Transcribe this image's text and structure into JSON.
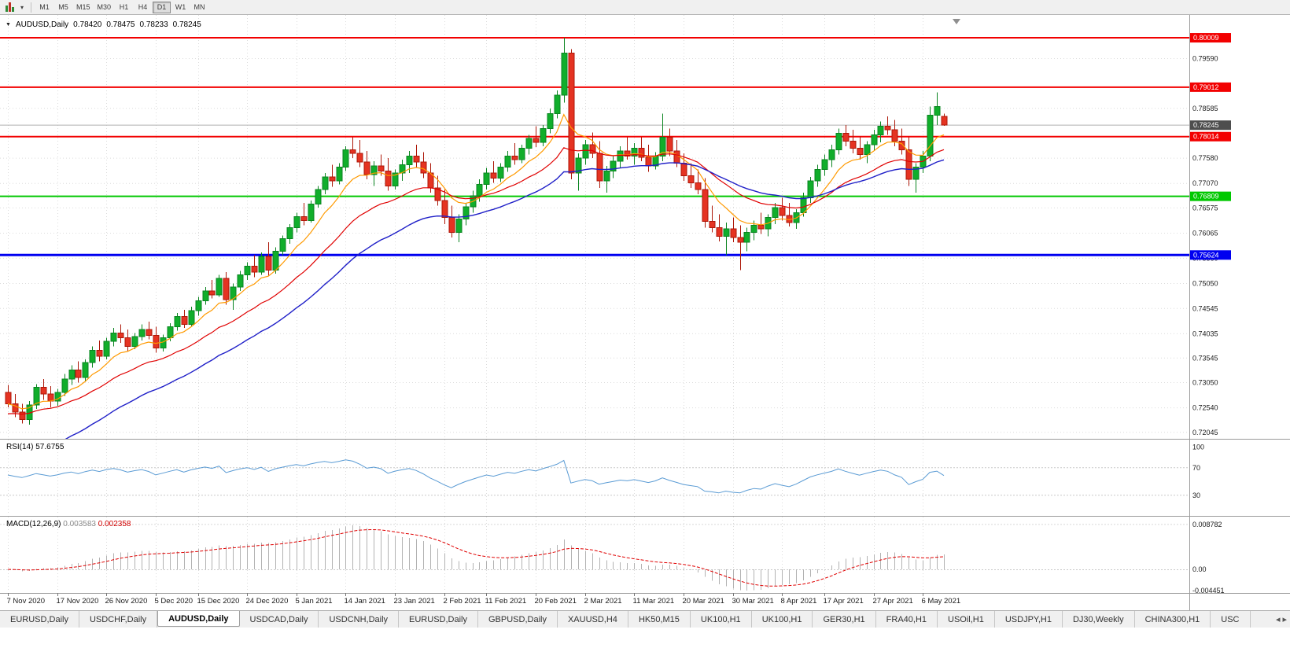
{
  "toolbar": {
    "timeframes": [
      "M1",
      "M5",
      "M15",
      "M30",
      "H1",
      "H4",
      "D1",
      "W1",
      "MN"
    ],
    "active_timeframe": "D1"
  },
  "tabs": {
    "items": [
      "EURUSD,Daily",
      "USDCHF,Daily",
      "AUDUSD,Daily",
      "USDCAD,Daily",
      "USDCNH,Daily",
      "EURUSD,Daily",
      "GBPUSD,Daily",
      "XAUUSD,H4",
      "HK50,M15",
      "UK100,H1",
      "UK100,H1",
      "GER30,H1",
      "FRA40,H1",
      "USOil,H1",
      "USDJPY,H1",
      "DJ30,Weekly",
      "CHINA300,H1",
      "USC"
    ],
    "active_index": 2,
    "scroll_left": "◂",
    "scroll_right": "▸"
  },
  "chart": {
    "title": "AUDUSD,Daily",
    "ohlc": [
      "0.78420",
      "0.78475",
      "0.78233",
      "0.78245"
    ],
    "current_price": "0.78245",
    "hlines": [
      {
        "price": 0.80009,
        "label": "0.80009",
        "color": "#f20000",
        "width": 2
      },
      {
        "price": 0.79012,
        "label": "0.79012",
        "color": "#f20000",
        "width": 2
      },
      {
        "price": 0.78014,
        "label": "0.78014",
        "color": "#f20000",
        "width": 2
      },
      {
        "price": 0.76809,
        "label": "0.76809",
        "color": "#00c800",
        "width": 2
      },
      {
        "price": 0.75624,
        "label": "0.75624",
        "color": "#0000f0",
        "width": 3
      }
    ],
    "price_axis": [
      "0.79590",
      "0.78585",
      "0.77580",
      "0.77070",
      "0.76575",
      "0.76065",
      "0.75560",
      "0.75050",
      "0.74545",
      "0.74035",
      "0.73545",
      "0.73050",
      "0.72540",
      "0.72045"
    ],
    "date_labels": [
      {
        "text": "7 Nov 2020",
        "bar": 0
      },
      {
        "text": "17 Nov 2020",
        "bar": 7
      },
      {
        "text": "26 Nov 2020",
        "bar": 14
      },
      {
        "text": "5 Dec 2020",
        "bar": 21
      },
      {
        "text": "15 Dec 2020",
        "bar": 27
      },
      {
        "text": "24 Dec 2020",
        "bar": 34
      },
      {
        "text": "5 Jan 2021",
        "bar": 41
      },
      {
        "text": "14 Jan 2021",
        "bar": 48
      },
      {
        "text": "23 Jan 2021",
        "bar": 55
      },
      {
        "text": "2 Feb 2021",
        "bar": 62
      },
      {
        "text": "11 Feb 2021",
        "bar": 68
      },
      {
        "text": "20 Feb 2021",
        "bar": 75
      },
      {
        "text": "2 Mar 2021",
        "bar": 82
      },
      {
        "text": "11 Mar 2021",
        "bar": 89
      },
      {
        "text": "20 Mar 2021",
        "bar": 96
      },
      {
        "text": "30 Mar 2021",
        "bar": 103
      },
      {
        "text": "8 Apr 2021",
        "bar": 110
      },
      {
        "text": "17 Apr 2021",
        "bar": 116
      },
      {
        "text": "27 Apr 2021",
        "bar": 123
      },
      {
        "text": "6 May 2021",
        "bar": 130
      }
    ],
    "candles": [
      [
        0.7285,
        0.73,
        0.7255,
        0.7262
      ],
      [
        0.7262,
        0.7282,
        0.7235,
        0.7245
      ],
      [
        0.7245,
        0.7262,
        0.7222,
        0.723
      ],
      [
        0.723,
        0.7268,
        0.722,
        0.726
      ],
      [
        0.726,
        0.7302,
        0.7252,
        0.7295
      ],
      [
        0.7295,
        0.7312,
        0.727,
        0.7282
      ],
      [
        0.7282,
        0.7298,
        0.7255,
        0.7268
      ],
      [
        0.7268,
        0.7292,
        0.7258,
        0.7285
      ],
      [
        0.7285,
        0.7322,
        0.7278,
        0.7312
      ],
      [
        0.7312,
        0.734,
        0.73,
        0.733
      ],
      [
        0.733,
        0.7348,
        0.7305,
        0.7315
      ],
      [
        0.7315,
        0.7352,
        0.7308,
        0.7345
      ],
      [
        0.7345,
        0.7378,
        0.7335,
        0.737
      ],
      [
        0.737,
        0.739,
        0.7348,
        0.7358
      ],
      [
        0.7358,
        0.7395,
        0.7352,
        0.7388
      ],
      [
        0.7388,
        0.7415,
        0.7378,
        0.7405
      ],
      [
        0.7405,
        0.7422,
        0.7385,
        0.7395
      ],
      [
        0.7395,
        0.7412,
        0.7368,
        0.7378
      ],
      [
        0.7378,
        0.7405,
        0.7372,
        0.7398
      ],
      [
        0.7398,
        0.7422,
        0.739,
        0.7412
      ],
      [
        0.7412,
        0.7428,
        0.7392,
        0.74
      ],
      [
        0.74,
        0.7418,
        0.7365,
        0.7375
      ],
      [
        0.7375,
        0.7402,
        0.7368,
        0.7395
      ],
      [
        0.7395,
        0.7425,
        0.7388,
        0.7418
      ],
      [
        0.7418,
        0.7445,
        0.741,
        0.7438
      ],
      [
        0.7438,
        0.7452,
        0.7415,
        0.7422
      ],
      [
        0.7422,
        0.7458,
        0.7418,
        0.745
      ],
      [
        0.745,
        0.7478,
        0.744,
        0.747
      ],
      [
        0.747,
        0.7498,
        0.7462,
        0.749
      ],
      [
        0.749,
        0.7512,
        0.7475,
        0.7482
      ],
      [
        0.7482,
        0.7522,
        0.7478,
        0.7515
      ],
      [
        0.7515,
        0.7528,
        0.7462,
        0.7472
      ],
      [
        0.7472,
        0.7505,
        0.7452,
        0.7498
      ],
      [
        0.7498,
        0.753,
        0.749,
        0.7522
      ],
      [
        0.7522,
        0.7548,
        0.7512,
        0.754
      ],
      [
        0.754,
        0.7562,
        0.7518,
        0.7528
      ],
      [
        0.7528,
        0.7568,
        0.7522,
        0.756
      ],
      [
        0.756,
        0.7588,
        0.752,
        0.7532
      ],
      [
        0.7532,
        0.7578,
        0.7525,
        0.757
      ],
      [
        0.757,
        0.7602,
        0.7562,
        0.7595
      ],
      [
        0.7595,
        0.7625,
        0.7585,
        0.7618
      ],
      [
        0.7618,
        0.7648,
        0.7608,
        0.764
      ],
      [
        0.764,
        0.7668,
        0.7622,
        0.7632
      ],
      [
        0.7632,
        0.7672,
        0.7628,
        0.7665
      ],
      [
        0.7665,
        0.7702,
        0.7658,
        0.7695
      ],
      [
        0.7695,
        0.7728,
        0.7685,
        0.772
      ],
      [
        0.772,
        0.7745,
        0.77,
        0.7712
      ],
      [
        0.7712,
        0.7748,
        0.7705,
        0.774
      ],
      [
        0.774,
        0.7782,
        0.7732,
        0.7775
      ],
      [
        0.7775,
        0.78,
        0.7758,
        0.7768
      ],
      [
        0.7768,
        0.7795,
        0.774,
        0.775
      ],
      [
        0.775,
        0.7772,
        0.7715,
        0.7725
      ],
      [
        0.7725,
        0.7752,
        0.7702,
        0.7742
      ],
      [
        0.7742,
        0.7765,
        0.7722,
        0.7732
      ],
      [
        0.7732,
        0.7758,
        0.7692,
        0.7702
      ],
      [
        0.7702,
        0.7735,
        0.7695,
        0.7728
      ],
      [
        0.7728,
        0.7755,
        0.7712,
        0.7745
      ],
      [
        0.7745,
        0.7772,
        0.7728,
        0.7762
      ],
      [
        0.7762,
        0.7785,
        0.774,
        0.775
      ],
      [
        0.775,
        0.777,
        0.7718,
        0.7728
      ],
      [
        0.7728,
        0.7748,
        0.7688,
        0.7698
      ],
      [
        0.7698,
        0.7722,
        0.7662,
        0.7672
      ],
      [
        0.7672,
        0.7695,
        0.7625,
        0.7638
      ],
      [
        0.7638,
        0.7662,
        0.7598,
        0.7608
      ],
      [
        0.7608,
        0.7645,
        0.7588,
        0.7635
      ],
      [
        0.7635,
        0.7668,
        0.7622,
        0.766
      ],
      [
        0.766,
        0.7692,
        0.7648,
        0.7682
      ],
      [
        0.7682,
        0.7715,
        0.767,
        0.7705
      ],
      [
        0.7705,
        0.7738,
        0.7695,
        0.7728
      ],
      [
        0.7728,
        0.7752,
        0.7708,
        0.7718
      ],
      [
        0.7718,
        0.7748,
        0.771,
        0.774
      ],
      [
        0.774,
        0.7772,
        0.773,
        0.7762
      ],
      [
        0.7762,
        0.7788,
        0.7745,
        0.7755
      ],
      [
        0.7755,
        0.7785,
        0.7748,
        0.7778
      ],
      [
        0.7778,
        0.7805,
        0.7765,
        0.7798
      ],
      [
        0.7798,
        0.7822,
        0.778,
        0.779
      ],
      [
        0.779,
        0.7825,
        0.7782,
        0.7818
      ],
      [
        0.7818,
        0.7858,
        0.7808,
        0.7848
      ],
      [
        0.7848,
        0.7895,
        0.7838,
        0.7885
      ],
      [
        0.7885,
        0.8001,
        0.787,
        0.797
      ],
      [
        0.797,
        0.7978,
        0.7715,
        0.7728
      ],
      [
        0.7728,
        0.7768,
        0.7692,
        0.7758
      ],
      [
        0.7758,
        0.7795,
        0.7745,
        0.7785
      ],
      [
        0.7785,
        0.781,
        0.7758,
        0.7768
      ],
      [
        0.7768,
        0.7792,
        0.7698,
        0.7712
      ],
      [
        0.7712,
        0.7742,
        0.7688,
        0.7732
      ],
      [
        0.7732,
        0.7762,
        0.7718,
        0.7752
      ],
      [
        0.7752,
        0.7782,
        0.7738,
        0.7772
      ],
      [
        0.7772,
        0.78,
        0.7755,
        0.7762
      ],
      [
        0.7762,
        0.7788,
        0.7745,
        0.7778
      ],
      [
        0.7778,
        0.78,
        0.7752,
        0.776
      ],
      [
        0.776,
        0.7785,
        0.773,
        0.7742
      ],
      [
        0.7742,
        0.777,
        0.7735,
        0.7762
      ],
      [
        0.7762,
        0.7848,
        0.7752,
        0.78
      ],
      [
        0.78,
        0.7818,
        0.7762,
        0.7772
      ],
      [
        0.7772,
        0.7795,
        0.774,
        0.7748
      ],
      [
        0.7748,
        0.7768,
        0.7712,
        0.7722
      ],
      [
        0.7722,
        0.7748,
        0.7698,
        0.7708
      ],
      [
        0.7708,
        0.7735,
        0.7685,
        0.7695
      ],
      [
        0.7695,
        0.7718,
        0.7618,
        0.763
      ],
      [
        0.763,
        0.7662,
        0.7608,
        0.7618
      ],
      [
        0.7618,
        0.7645,
        0.759,
        0.76
      ],
      [
        0.76,
        0.7628,
        0.7562,
        0.7615
      ],
      [
        0.7615,
        0.7638,
        0.7588,
        0.7598
      ],
      [
        0.7598,
        0.7622,
        0.7532,
        0.7588
      ],
      [
        0.7588,
        0.7618,
        0.757,
        0.7608
      ],
      [
        0.7608,
        0.7632,
        0.7592,
        0.7622
      ],
      [
        0.7622,
        0.7648,
        0.7605,
        0.7615
      ],
      [
        0.7615,
        0.7645,
        0.76,
        0.7638
      ],
      [
        0.7638,
        0.7668,
        0.7625,
        0.7658
      ],
      [
        0.7658,
        0.7678,
        0.7632,
        0.7642
      ],
      [
        0.7642,
        0.7668,
        0.762,
        0.7628
      ],
      [
        0.7628,
        0.7655,
        0.7615,
        0.7648
      ],
      [
        0.7648,
        0.7688,
        0.764,
        0.7678
      ],
      [
        0.7678,
        0.772,
        0.7668,
        0.7712
      ],
      [
        0.7712,
        0.7745,
        0.77,
        0.7735
      ],
      [
        0.7735,
        0.7765,
        0.7722,
        0.7755
      ],
      [
        0.7755,
        0.7785,
        0.774,
        0.7775
      ],
      [
        0.7775,
        0.7818,
        0.7765,
        0.7808
      ],
      [
        0.7808,
        0.7825,
        0.7782,
        0.7792
      ],
      [
        0.7792,
        0.7815,
        0.7768,
        0.7778
      ],
      [
        0.7778,
        0.7802,
        0.7755,
        0.7765
      ],
      [
        0.7765,
        0.7792,
        0.7748,
        0.7785
      ],
      [
        0.7785,
        0.7815,
        0.7772,
        0.7805
      ],
      [
        0.7805,
        0.7832,
        0.779,
        0.7822
      ],
      [
        0.7822,
        0.7842,
        0.7805,
        0.7815
      ],
      [
        0.7815,
        0.7835,
        0.7782,
        0.7792
      ],
      [
        0.7792,
        0.7818,
        0.7765,
        0.7775
      ],
      [
        0.7775,
        0.78,
        0.7702,
        0.7715
      ],
      [
        0.7715,
        0.7748,
        0.7688,
        0.774
      ],
      [
        0.774,
        0.7772,
        0.7728,
        0.7762
      ],
      [
        0.7762,
        0.7862,
        0.7752,
        0.7845
      ],
      [
        0.7845,
        0.7891,
        0.7825,
        0.7862
      ],
      [
        0.7842,
        0.78475,
        0.78233,
        0.78245
      ]
    ]
  },
  "rsi": {
    "label": "RSI(14)",
    "value": "57.6755",
    "levels": [
      "100",
      "70",
      "30"
    ]
  },
  "macd": {
    "label": "MACD(12,26,9)",
    "values": [
      "0.003583",
      "0.002358"
    ],
    "axis": [
      "0.008782",
      "0.00",
      "-0.004451"
    ]
  },
  "colors": {
    "candle_up": "#10ae2b",
    "candle_up_border": "#0a8420",
    "candle_down": "#e53322",
    "candle_down_border": "#ad1708",
    "ma_fast": "#ff9a00",
    "ma_medium": "#e00000",
    "ma_slow": "#2020c8",
    "rsi_line": "#5a9bd4",
    "macd_hist": "#b2b2b2",
    "macd_signal": "#e00000",
    "grid": "#dcdcdc",
    "current_price_badge": "#4e4e4e"
  }
}
